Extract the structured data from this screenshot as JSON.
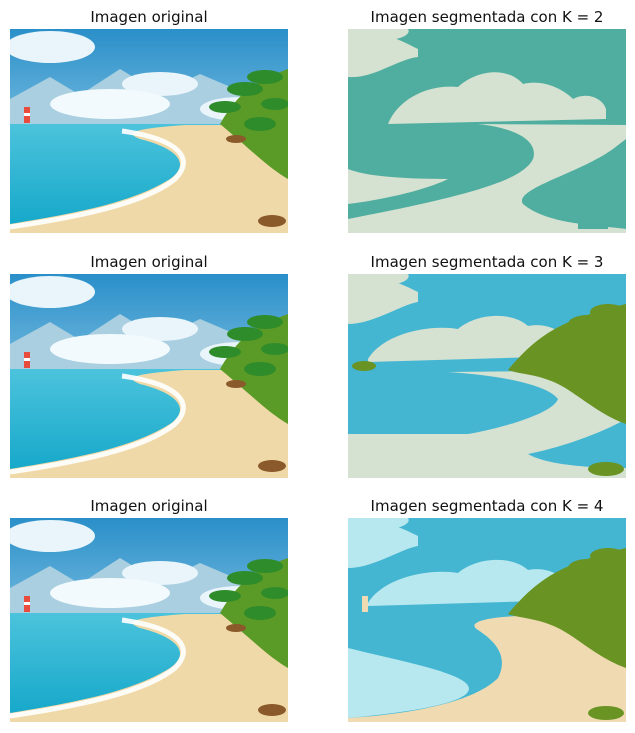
{
  "panels": [
    {
      "title": "Imagen original"
    },
    {
      "title": "Imagen segmentada con K = 2"
    },
    {
      "title": "Imagen original"
    },
    {
      "title": "Imagen segmentada con K = 3"
    },
    {
      "title": "Imagen original"
    },
    {
      "title": "Imagen segmentada con K = 4"
    }
  ],
  "palettes": {
    "k2": [
      "#4fae9f",
      "#d5e1d1"
    ],
    "k3": [
      "#45b6d2",
      "#d5e1d1",
      "#699322"
    ],
    "k4": [
      "#45b6d2",
      "#b8e8ef",
      "#699322",
      "#efdab2"
    ]
  }
}
